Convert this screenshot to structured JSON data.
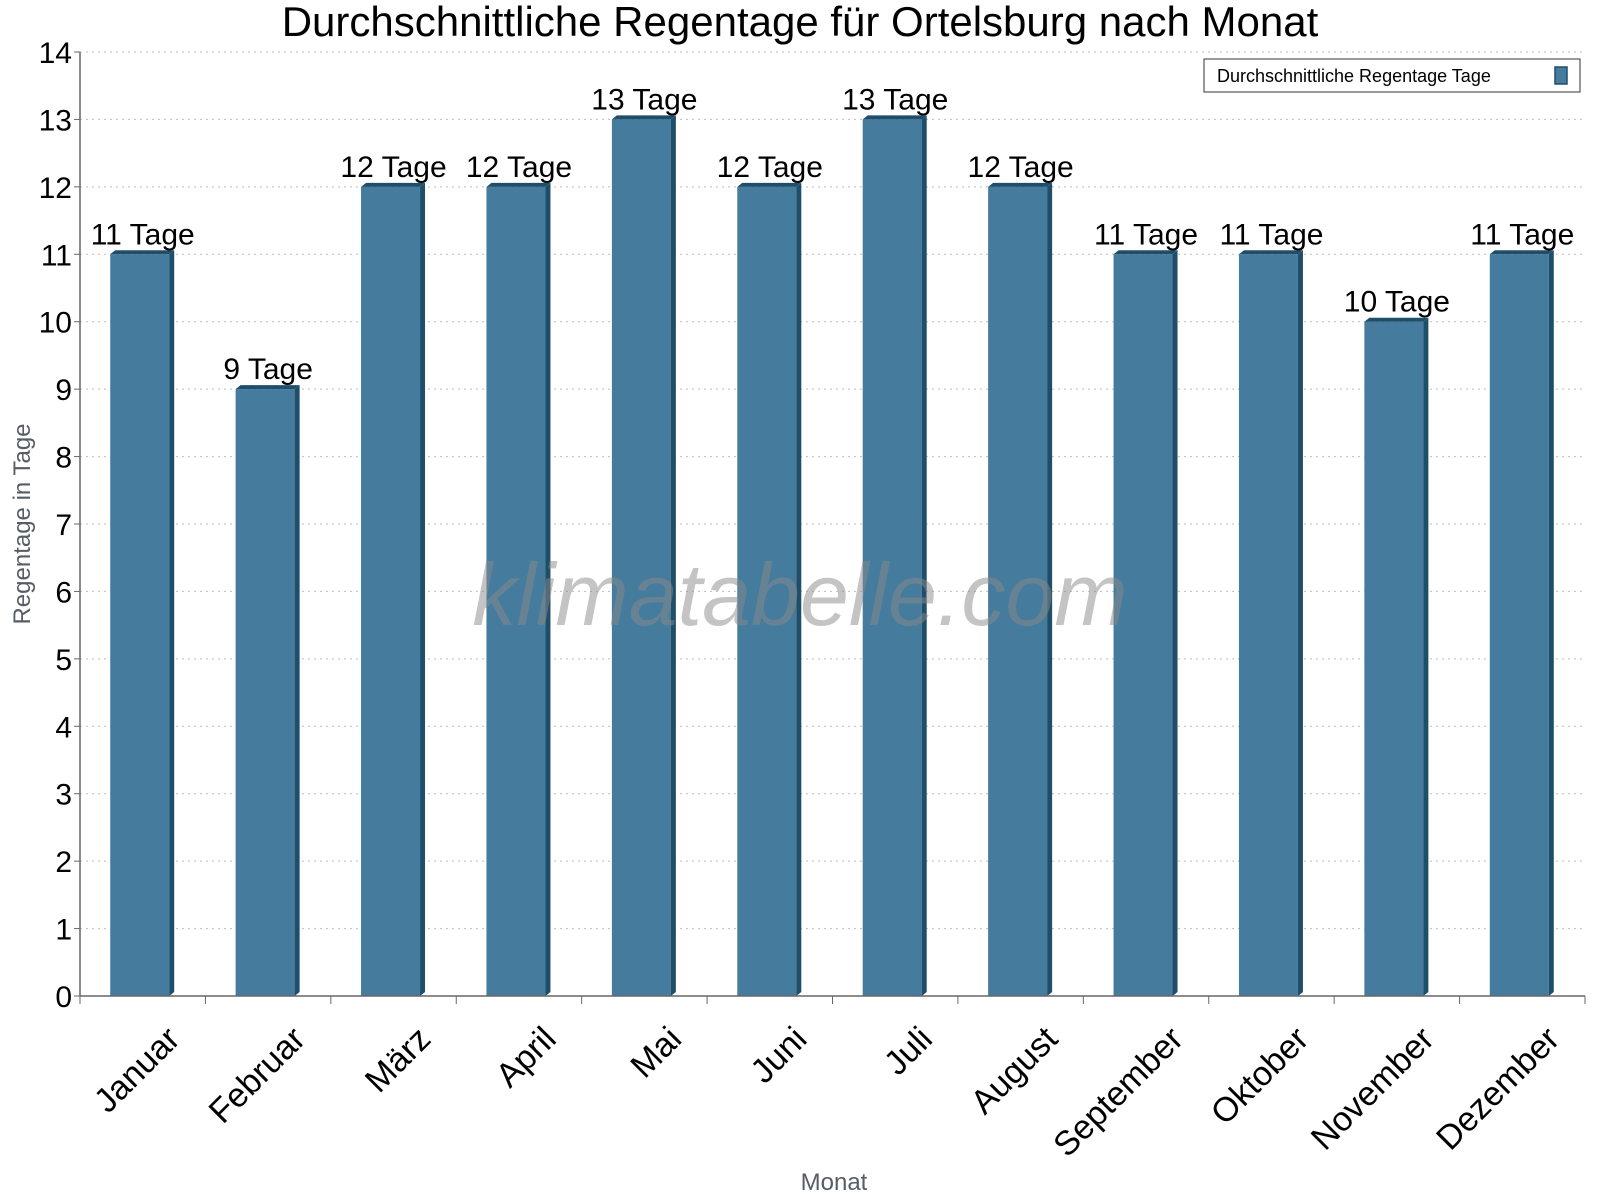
{
  "chart_data": {
    "type": "bar",
    "title": "Durchschnittliche Regentage für Ortelsburg nach Monat",
    "xlabel": "Monat",
    "ylabel": "Regentage in Tage",
    "ylim": [
      0,
      14
    ],
    "yticks": [
      0,
      1,
      2,
      3,
      4,
      5,
      6,
      7,
      8,
      9,
      10,
      11,
      12,
      13,
      14
    ],
    "grid": true,
    "legend": {
      "placement": "top-right",
      "entries": [
        "Durchschnittliche Regentage Tage"
      ]
    },
    "watermark": "klimatabelle.com",
    "categories": [
      "Januar",
      "Februar",
      "März",
      "April",
      "Mai",
      "Juni",
      "Juli",
      "August",
      "September",
      "Oktober",
      "November",
      "Dezember"
    ],
    "series": [
      {
        "name": "Durchschnittliche Regentage Tage",
        "color": "#457b9d",
        "values": [
          11,
          9,
          12,
          12,
          13,
          12,
          13,
          12,
          11,
          11,
          10,
          11
        ],
        "data_labels": [
          "11 Tage",
          "9 Tage",
          "12 Tage",
          "12 Tage",
          "13 Tage",
          "12 Tage",
          "13 Tage",
          "12 Tage",
          "11 Tage",
          "11 Tage",
          "10 Tage",
          "11 Tage"
        ]
      }
    ]
  }
}
